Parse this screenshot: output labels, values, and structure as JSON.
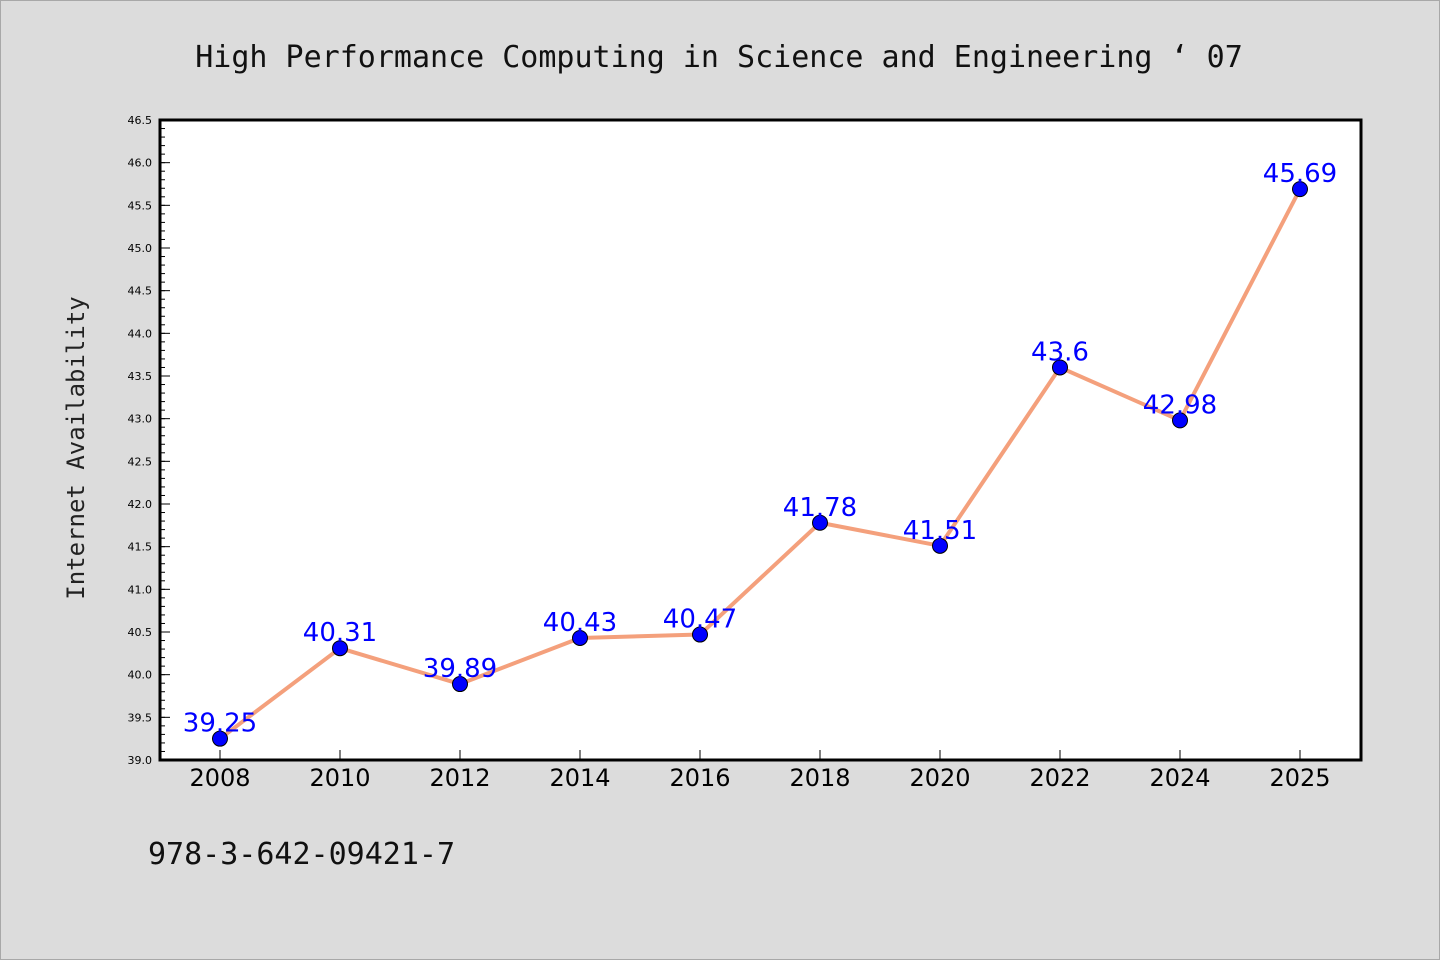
{
  "header": {
    "title": "High Performance Computing in Science and Engineering  ‘ 07"
  },
  "footer": {
    "isbn": "978-3-642-09421-7"
  },
  "chart_data": {
    "type": "line",
    "title": "High Performance Computing in Science and Engineering  ‘ 07",
    "xlabel": "",
    "ylabel": "Internet Availability",
    "categories": [
      "2008",
      "2010",
      "2012",
      "2014",
      "2016",
      "2018",
      "2020",
      "2022",
      "2024",
      "2025"
    ],
    "series": [
      {
        "values": [
          39.25,
          40.31,
          39.89,
          40.43,
          40.47,
          41.78,
          41.51,
          43.6,
          42.98,
          45.69
        ]
      }
    ],
    "data_labels": [
      "39.25",
      "40.31",
      "39.89",
      "40.43",
      "40.47",
      "41.78",
      "41.51",
      "43.6",
      "42.98",
      "45.69"
    ],
    "ylim": [
      39.0,
      46.5
    ],
    "yticks": [
      "39.0",
      "39.5",
      "40.0",
      "40.5",
      "41.0",
      "41.5",
      "42.0",
      "42.5",
      "43.0",
      "43.5",
      "44.0",
      "44.5",
      "45.0",
      "45.5",
      "46.0",
      "46.5"
    ],
    "grid": false,
    "colors": {
      "line": "#f4a07c",
      "marker": "#0000ff",
      "label": "#0000ff",
      "background": "#dcdcdc",
      "plot_background": "#ffffff"
    }
  }
}
